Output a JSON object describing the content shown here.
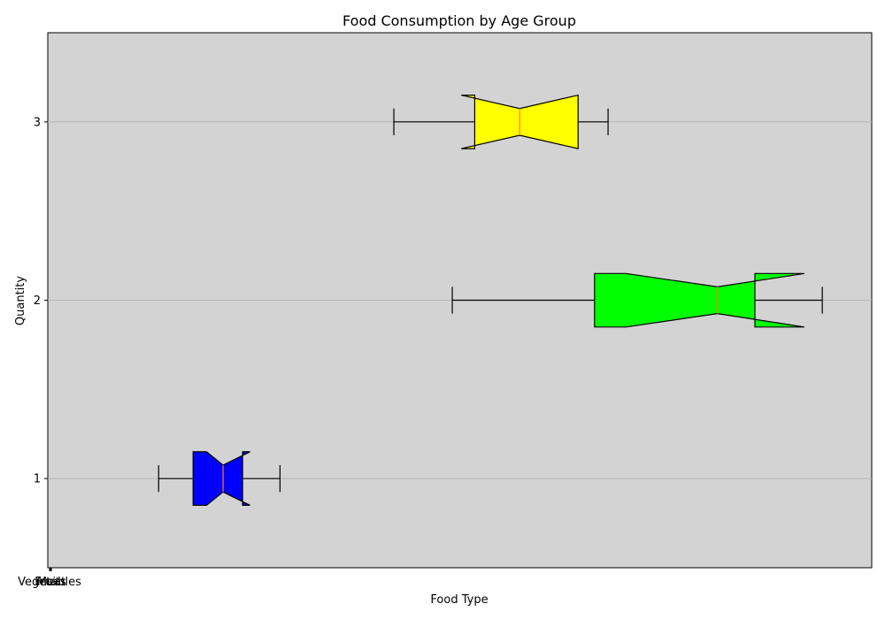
{
  "chart_data": {
    "type": "boxplot",
    "orientation": "horizontal",
    "notched": true,
    "title": "Food Consumption by Age Group",
    "xlabel": "Food Type",
    "ylabel": "Quantity",
    "x_tick_labels": [
      "Vegetables",
      "Fruits",
      "Meat"
    ],
    "y_ticks": [
      1,
      2,
      3
    ],
    "ylim": [
      0.5,
      3.5
    ],
    "grid": "y",
    "background": "#d3d3d3",
    "boxes": [
      {
        "position": 1,
        "whisker_low": 7.4,
        "q1": 9.7,
        "median": 11.7,
        "q3": 13.0,
        "whisker_high": 15.5,
        "notch_low": 10.6,
        "notch_high": 13.5,
        "color": "#0000ff"
      },
      {
        "position": 2,
        "whisker_low": 27.0,
        "q1": 36.5,
        "median": 44.7,
        "q3": 47.2,
        "whisker_high": 51.7,
        "notch_low": 38.6,
        "notch_high": 50.5,
        "color": "#00ff00"
      },
      {
        "position": 3,
        "whisker_low": 23.1,
        "q1": 28.5,
        "median": 31.5,
        "q3": 35.4,
        "whisker_high": 37.4,
        "notch_low": 27.6,
        "notch_high": 35.4,
        "color": "#ffff00"
      }
    ]
  }
}
